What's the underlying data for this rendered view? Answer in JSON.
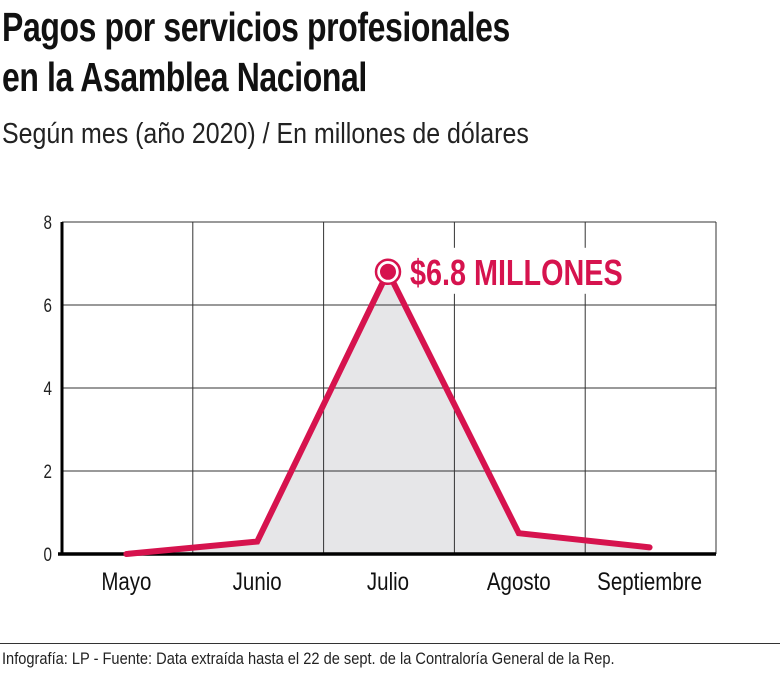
{
  "title_line1": "Pagos por servicios profesionales",
  "title_line2": "en la Asamblea Nacional",
  "subtitle": "Según mes (año 2020) / En millones de dólares",
  "footer": "Infografía: LP - Fuente: Data extraída hasta el 22 de sept. de la Contraloría General de la Rep.",
  "chart_data": {
    "type": "line",
    "title": "Pagos por servicios profesionales en la Asamblea Nacional",
    "subtitle": "Según mes (año 2020) / En millones de dólares",
    "categories": [
      "Mayo",
      "Junio",
      "Julio",
      "Agosto",
      "Septiembre"
    ],
    "values": [
      0,
      0.3,
      6.8,
      0.5,
      0.16
    ],
    "ylim": [
      0,
      8
    ],
    "yticks": [
      0,
      2,
      4,
      6,
      8
    ],
    "grid": true,
    "area_fill": true,
    "annotation": {
      "category": "Julio",
      "text": "$6.8 MILLONES"
    },
    "colors": {
      "line": "#d6134e",
      "fill": "#e6e6e8",
      "grid": "#333333"
    }
  }
}
